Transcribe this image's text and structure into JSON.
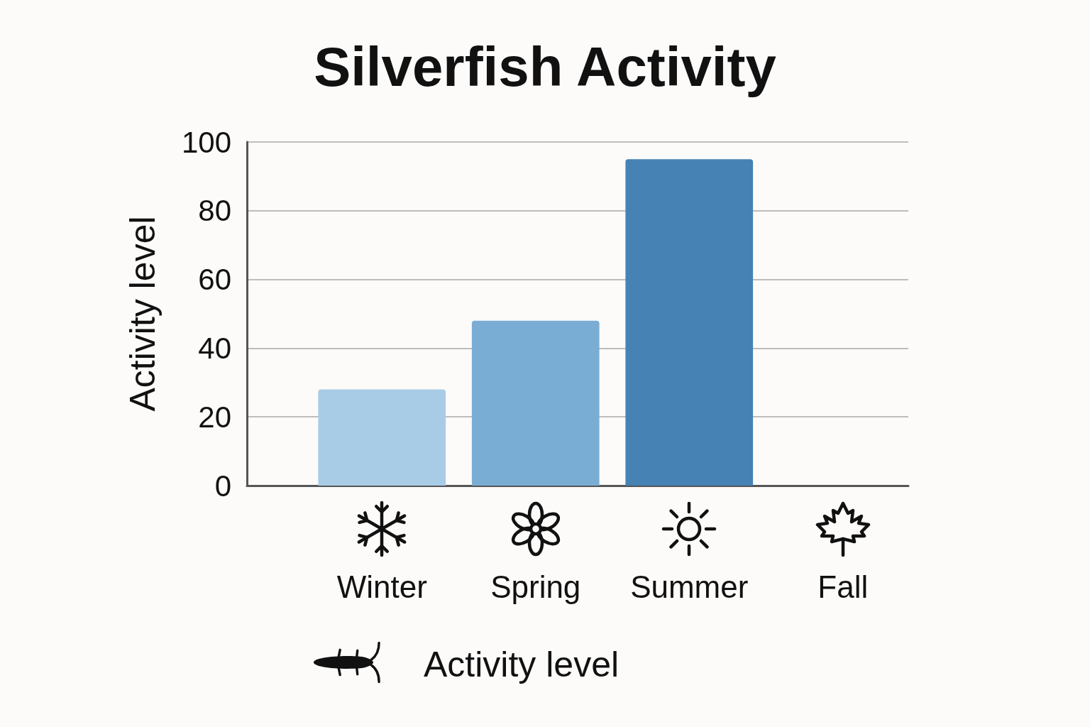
{
  "chart_data": {
    "type": "bar",
    "title": "Silverfish Activity",
    "ylabel": "Activity level",
    "categories": [
      "Winter",
      "Spring",
      "Summer",
      "Fall"
    ],
    "series": [
      {
        "name": "Activity level",
        "values": [
          28,
          48,
          95,
          0
        ],
        "colors": [
          "#a9cce6",
          "#7aadd4",
          "#4682b4",
          "#4682b4"
        ]
      }
    ],
    "ylim": [
      0,
      100
    ],
    "yticks": [
      0,
      20,
      40,
      60,
      80,
      100
    ],
    "grid": "y",
    "legend": "bottom"
  }
}
